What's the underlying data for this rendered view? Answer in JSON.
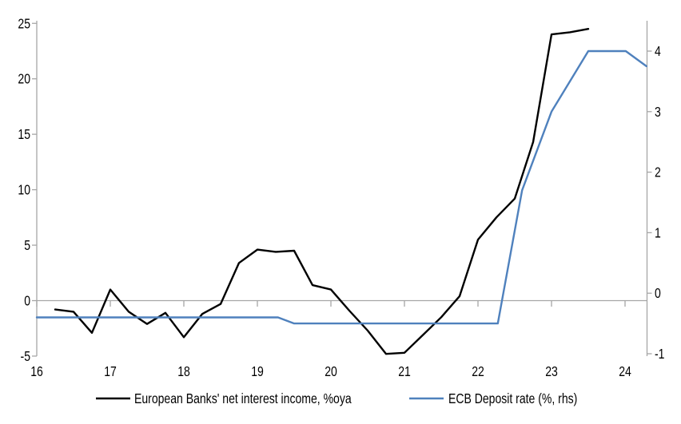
{
  "chart_data": {
    "type": "line",
    "title": "",
    "legend_position": "bottom",
    "grid": "zero-line-only",
    "axis_color": "#A6A6A6",
    "text_color": "#000000",
    "background": "#FFFFFF",
    "x_axis": {
      "min": 16,
      "max": 24.29,
      "ticks": [
        16,
        17,
        18,
        19,
        20,
        21,
        22,
        23,
        24
      ],
      "tick_labels": [
        "16",
        "17",
        "18",
        "19",
        "20",
        "21",
        "22",
        "23",
        "24"
      ]
    },
    "y_axis_left": {
      "min": -5,
      "max": 25,
      "ticks": [
        -5,
        0,
        5,
        10,
        15,
        20,
        25
      ],
      "tick_labels": [
        "-5",
        "0",
        "5",
        "10",
        "15",
        "20",
        "25"
      ]
    },
    "y_axis_right": {
      "min": -1,
      "max": 4.5,
      "ticks": [
        -1,
        0,
        1,
        2,
        3,
        4
      ],
      "tick_labels": [
        "-1",
        "0",
        "1",
        "2",
        "3",
        "4"
      ]
    },
    "series": [
      {
        "name": "European Banks' net interest income, %oya",
        "axis": "left",
        "color": "#000000",
        "points": [
          [
            16.25,
            -0.8
          ],
          [
            16.5,
            -1.0
          ],
          [
            16.75,
            -2.9
          ],
          [
            17.0,
            1.0
          ],
          [
            17.25,
            -1.0
          ],
          [
            17.5,
            -2.1
          ],
          [
            17.75,
            -1.1
          ],
          [
            18.0,
            -3.3
          ],
          [
            18.25,
            -1.2
          ],
          [
            18.5,
            -0.3
          ],
          [
            18.75,
            3.4
          ],
          [
            19.0,
            4.6
          ],
          [
            19.25,
            4.4
          ],
          [
            19.5,
            4.5
          ],
          [
            19.75,
            1.4
          ],
          [
            20.0,
            1.0
          ],
          [
            20.25,
            -0.9
          ],
          [
            20.5,
            -2.7
          ],
          [
            20.75,
            -4.8
          ],
          [
            21.0,
            -4.7
          ],
          [
            21.25,
            -3.1
          ],
          [
            21.5,
            -1.5
          ],
          [
            21.75,
            0.4
          ],
          [
            22.0,
            5.5
          ],
          [
            22.25,
            7.5
          ],
          [
            22.5,
            9.2
          ],
          [
            22.75,
            14.3
          ],
          [
            23.0,
            24.0
          ],
          [
            23.25,
            24.2
          ],
          [
            23.5,
            24.5
          ]
        ]
      },
      {
        "name": "ECB Deposit rate (%, rhs)",
        "axis": "right",
        "color": "#4F81BD",
        "points": [
          [
            16.0,
            -0.4
          ],
          [
            19.28,
            -0.4
          ],
          [
            19.5,
            -0.5
          ],
          [
            22.27,
            -0.5
          ],
          [
            22.6,
            1.7
          ],
          [
            23.0,
            3.0
          ],
          [
            23.5,
            4.0
          ],
          [
            24.01,
            4.0
          ],
          [
            24.29,
            3.75
          ]
        ]
      }
    ]
  }
}
